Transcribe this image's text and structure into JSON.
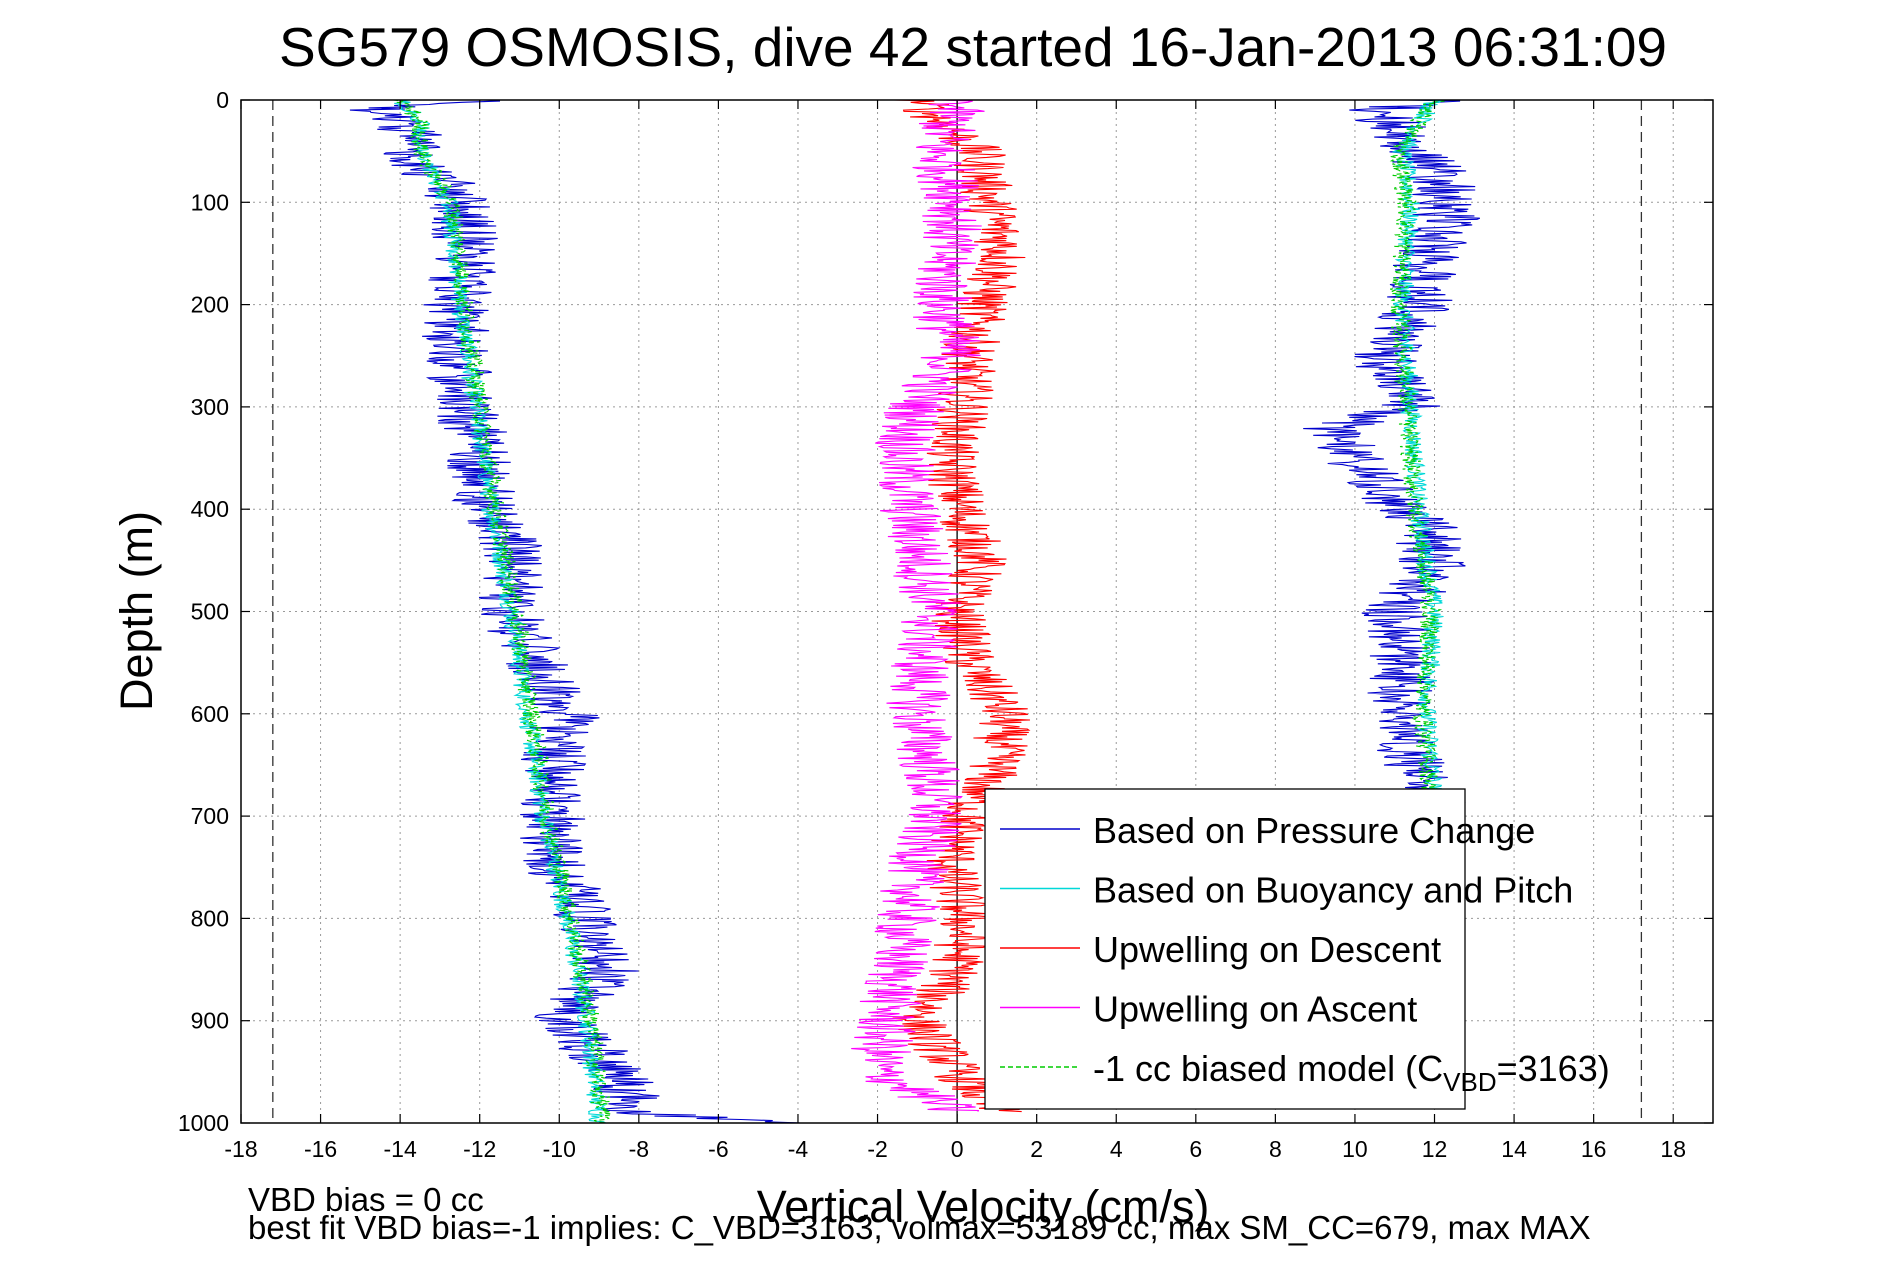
{
  "chart_data": {
    "type": "line",
    "title": "SG579 OSMOSIS, dive 42 started 16-Jan-2013 06:31:09",
    "xlabel": "Vertical Velocity (cm/s)",
    "ylabel": "Depth (m)",
    "xlim": [
      -18,
      19
    ],
    "ylim": [
      1000,
      0
    ],
    "y_inverted": true,
    "xticks": [
      -18,
      -16,
      -14,
      -12,
      -10,
      -8,
      -6,
      -4,
      -2,
      0,
      2,
      4,
      6,
      8,
      10,
      12,
      14,
      16,
      18
    ],
    "yticks": [
      0,
      100,
      200,
      300,
      400,
      500,
      600,
      700,
      800,
      900,
      1000
    ],
    "grid": true,
    "legend_position": "bottom-right",
    "reference_lines": {
      "dashed_x": [
        -17.2,
        17.2
      ],
      "solid_x": [
        0
      ]
    },
    "series": [
      {
        "name": "Based on Pressure Change",
        "color": "#0000cc",
        "noise": 0.85,
        "segments": [
          {
            "depth": [
              0,
              10,
              30,
              60,
              100,
              150,
              200,
              250,
              300,
              350,
              400,
              450,
              500,
              550,
              600,
              650,
              700,
              750,
              800,
              850,
              900,
              950,
              990,
              1000
            ],
            "velocity": [
              -12,
              -14.6,
              -13.8,
              -13.5,
              -12.5,
              -12.3,
              -12.6,
              -12.6,
              -12.3,
              -12,
              -11.8,
              -11,
              -11.3,
              -10.6,
              -9.8,
              -10.2,
              -10.2,
              -10.1,
              -9.4,
              -8.8,
              -10,
              -8.5,
              -8.2,
              -4
            ]
          },
          {
            "depth": [
              0,
              10,
              40,
              80,
              120,
              150,
              200,
              250,
              280,
              300,
              320,
              350,
              380,
              400,
              420,
              460,
              500,
              550,
              600,
              650,
              680,
              690
            ],
            "velocity": [
              12,
              10.6,
              11.3,
              12.2,
              12.3,
              11.8,
              11.6,
              10.8,
              11,
              11.4,
              9.5,
              9.9,
              10.6,
              11.2,
              11.8,
              12,
              11,
              11.2,
              11.1,
              11.5,
              12.1,
              12
            ]
          }
        ]
      },
      {
        "name": "Based on Buoyancy and Pitch",
        "color": "#00d8d8",
        "noise": 0.25,
        "segments": [
          {
            "depth": [
              0,
              20,
              50,
              100,
              150,
              200,
              300,
              400,
              500,
              600,
              700,
              800,
              900,
              1000
            ],
            "velocity": [
              -14,
              -13.5,
              -13.5,
              -12.8,
              -12.6,
              -12.5,
              -12.1,
              -11.7,
              -11.2,
              -10.8,
              -10.4,
              -9.8,
              -9.3,
              -9
            ]
          },
          {
            "depth": [
              0,
              50,
              100,
              200,
              300,
              400,
              500,
              600,
              680
            ],
            "velocity": [
              12,
              11.2,
              11.4,
              11.2,
              11.4,
              11.6,
              12,
              11.8,
              12
            ]
          }
        ]
      },
      {
        "name": "Upwelling on Descent",
        "color": "#ff0000",
        "noise": 0.7,
        "segments": [
          {
            "depth": [
              0,
              50,
              100,
              150,
              200,
              250,
              300,
              350,
              400,
              450,
              500,
              550,
              600,
              650,
              700,
              750,
              800,
              850,
              900,
              950,
              990
            ],
            "velocity": [
              -1,
              0.5,
              0.8,
              1.2,
              0.6,
              0.3,
              0.2,
              -0.2,
              0.1,
              0.6,
              0,
              0.3,
              1.2,
              1,
              0.2,
              -0.2,
              0.2,
              0,
              -1,
              0,
              1
            ]
          }
        ]
      },
      {
        "name": "Upwelling on Ascent",
        "color": "#ff00ff",
        "noise": 0.8,
        "segments": [
          {
            "depth": [
              0,
              50,
              100,
              150,
              200,
              250,
              300,
              350,
              400,
              450,
              500,
              550,
              600,
              650,
              700,
              750,
              800,
              850,
              900,
              950,
              990
            ],
            "velocity": [
              0,
              -0.5,
              0,
              -0.3,
              -0.4,
              -0.1,
              -1,
              -1.4,
              -1.2,
              -0.9,
              -0.6,
              -0.9,
              -1,
              -0.7,
              -0.6,
              -1,
              -1.3,
              -1.5,
              -1.8,
              -2,
              0
            ]
          }
        ]
      },
      {
        "name": "-1 cc biased model (C",
        "name_subscript": "VBD",
        "name_suffix": "=3163)",
        "color": "#00cc00",
        "dashed": true,
        "noise": 0.25,
        "segments": [
          {
            "depth": [
              0,
              20,
              50,
              100,
              150,
              200,
              300,
              400,
              500,
              600,
              700,
              800,
              900,
              1000
            ],
            "velocity": [
              -14,
              -13.5,
              -13.5,
              -12.7,
              -12.5,
              -12.4,
              -12,
              -11.6,
              -11.1,
              -10.7,
              -10.3,
              -9.7,
              -9.2,
              -8.9
            ]
          },
          {
            "depth": [
              0,
              50,
              100,
              200,
              300,
              400,
              500,
              600,
              680
            ],
            "velocity": [
              12,
              11.1,
              11.3,
              11.1,
              11.3,
              11.5,
              11.9,
              11.7,
              11.9
            ]
          }
        ]
      }
    ]
  },
  "footnotes": {
    "line1": "VBD bias = 0 cc",
    "line2": "best fit VBD bias=-1 implies: C_VBD=3163, volmax=53189 cc, max SM_CC=679, max MAX"
  }
}
